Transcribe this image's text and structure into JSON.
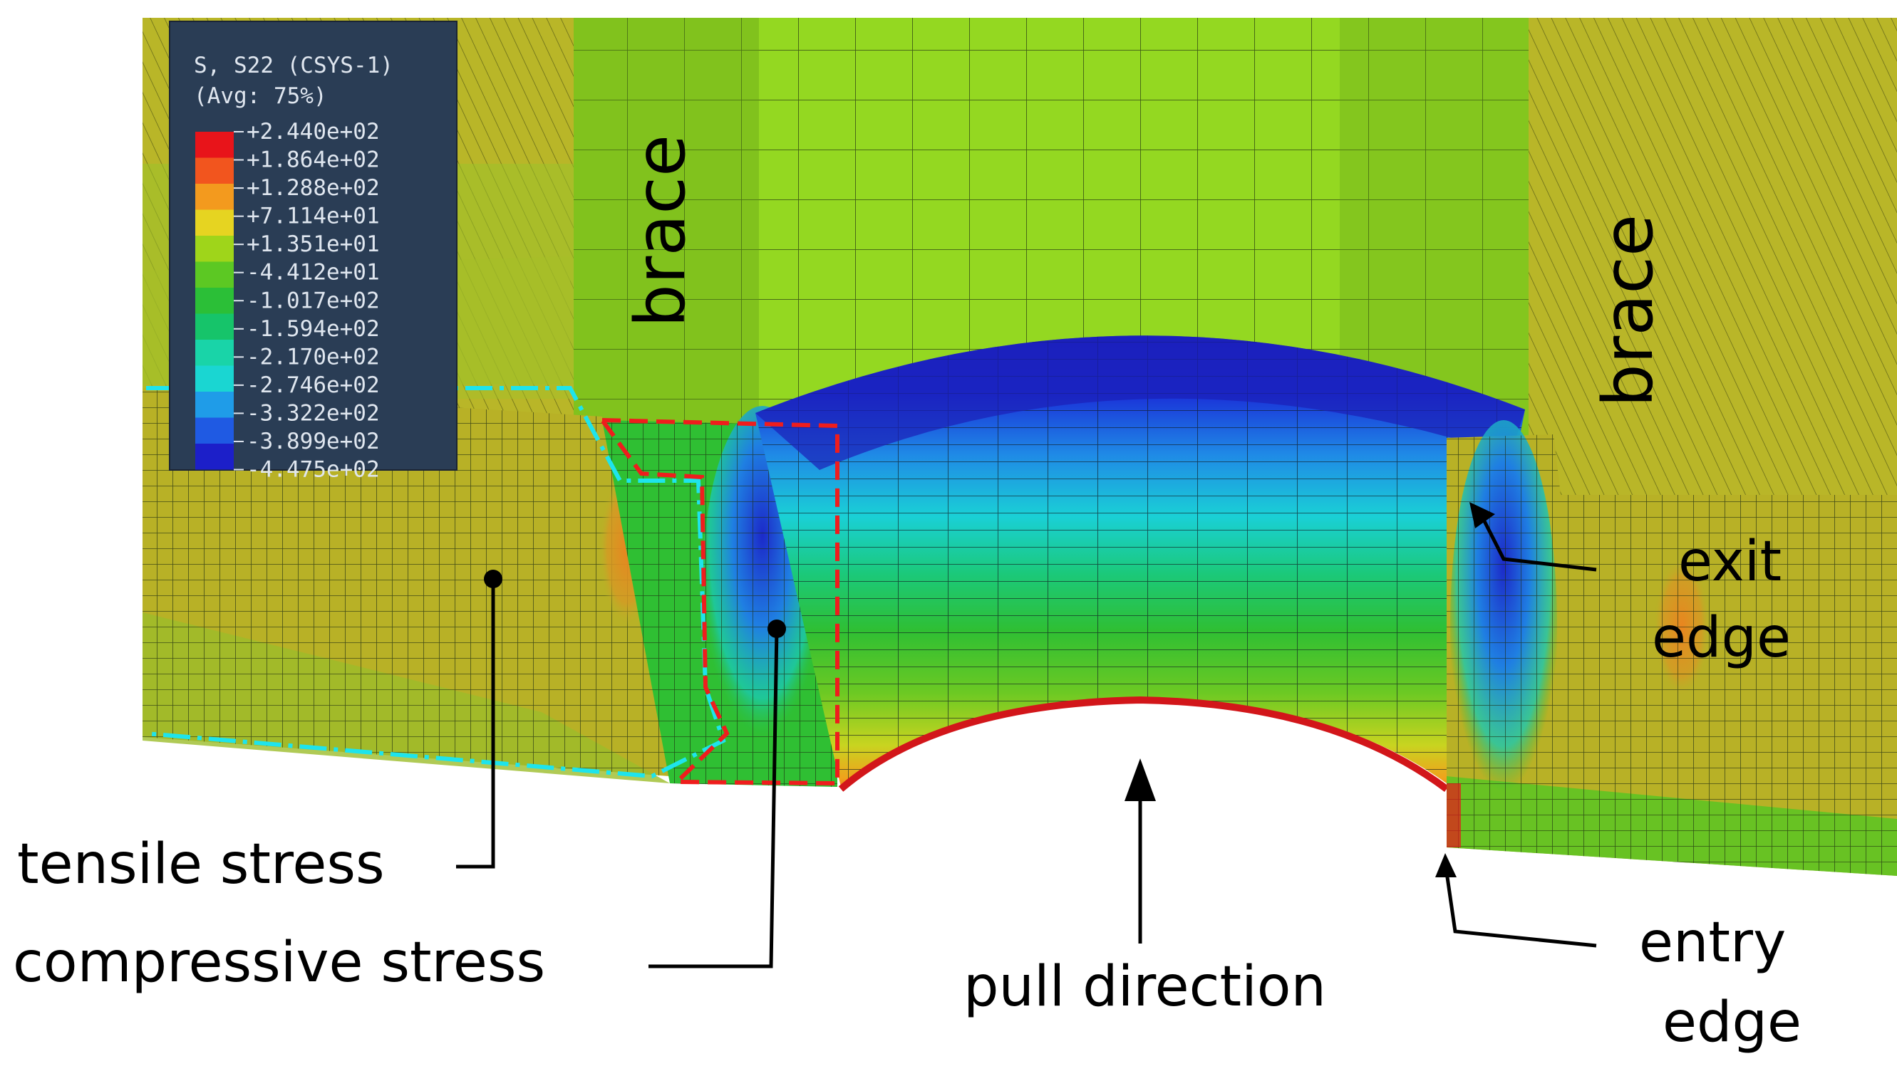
{
  "legend": {
    "title_line1": "S, S22 (CSYS-1)",
    "title_line2": "(Avg: 75%)",
    "values": [
      "+2.440e+02",
      "+1.864e+02",
      "+1.288e+02",
      "+7.114e+01",
      "+1.351e+01",
      "-4.412e+01",
      "-1.017e+02",
      "-1.594e+02",
      "-2.170e+02",
      "-2.746e+02",
      "-3.322e+02",
      "-3.899e+02",
      "-4.475e+02"
    ],
    "colors": [
      "#e8141a",
      "#f2551e",
      "#f39a1e",
      "#e6d421",
      "#9fd51a",
      "#5cc823",
      "#2bbf37",
      "#16c46a",
      "#19d4a8",
      "#1ad6d2",
      "#1f9ce8",
      "#1f5ae3",
      "#1c1fc9"
    ]
  },
  "labels": {
    "brace_left": "brace",
    "brace_right": "brace",
    "exit_line1": "exit",
    "exit_line2": "edge",
    "entry_line1": "entry",
    "entry_line2": "edge",
    "tensile": "tensile stress",
    "compressive": "compressive stress",
    "pull": "pull direction"
  },
  "colors": {
    "plate_yellow": "#b5b327",
    "plate_green": "#8dc626",
    "brace_green": "#94d821",
    "cyan_outline": "#1ee4ec",
    "red_outline": "#ef1d1d",
    "legend_bg": "#2a3d55"
  }
}
